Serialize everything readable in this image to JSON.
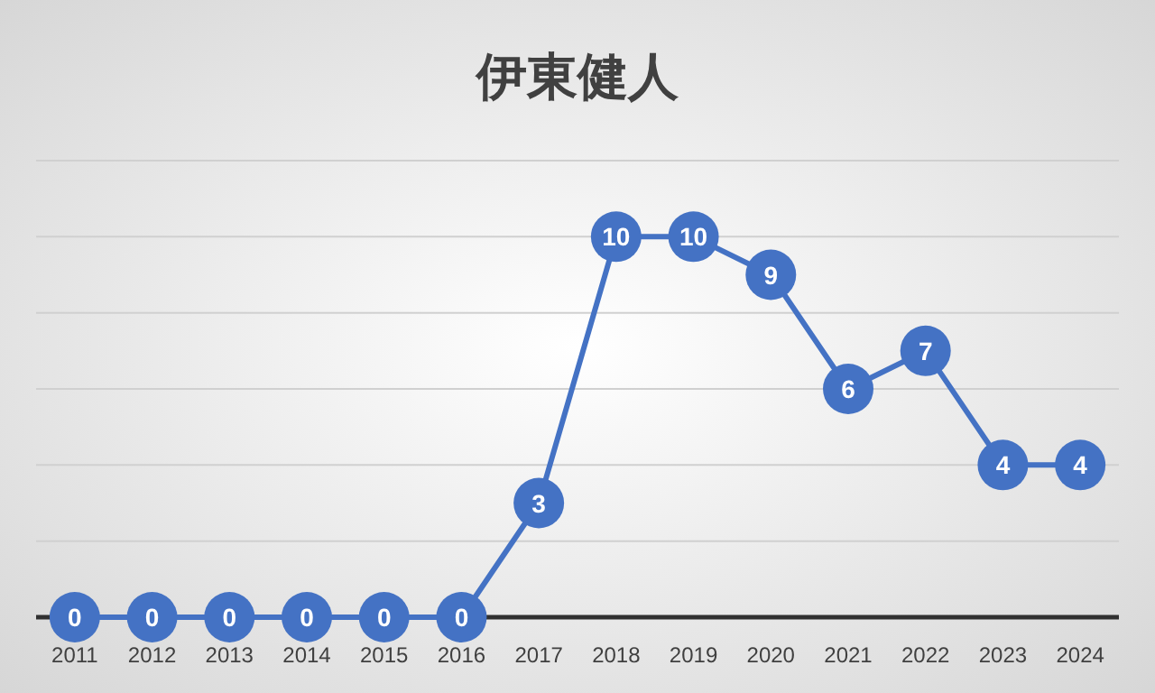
{
  "chart_data": {
    "type": "line",
    "title": "伊東健人",
    "categories": [
      "2011",
      "2012",
      "2013",
      "2014",
      "2015",
      "2016",
      "2017",
      "2018",
      "2019",
      "2020",
      "2021",
      "2022",
      "2023",
      "2024"
    ],
    "series": [
      {
        "color": "#4472c4",
        "values": [
          0,
          0,
          0,
          0,
          0,
          0,
          3,
          10,
          10,
          9,
          6,
          7,
          4,
          4
        ]
      }
    ],
    "ylim": [
      0,
      12
    ],
    "yticks": [
      {
        "value": 0,
        "label": null
      },
      {
        "value": 2,
        "label": null
      },
      {
        "value": 4,
        "label": null
      },
      {
        "value": 6,
        "label": null
      },
      {
        "value": 8,
        "label": null
      },
      {
        "value": 10,
        "label": null
      },
      {
        "value": 12,
        "label": null
      }
    ],
    "grid": "y",
    "tick_labels": "x",
    "data_labels": true,
    "marker": "circle",
    "line_style": "solid"
  }
}
